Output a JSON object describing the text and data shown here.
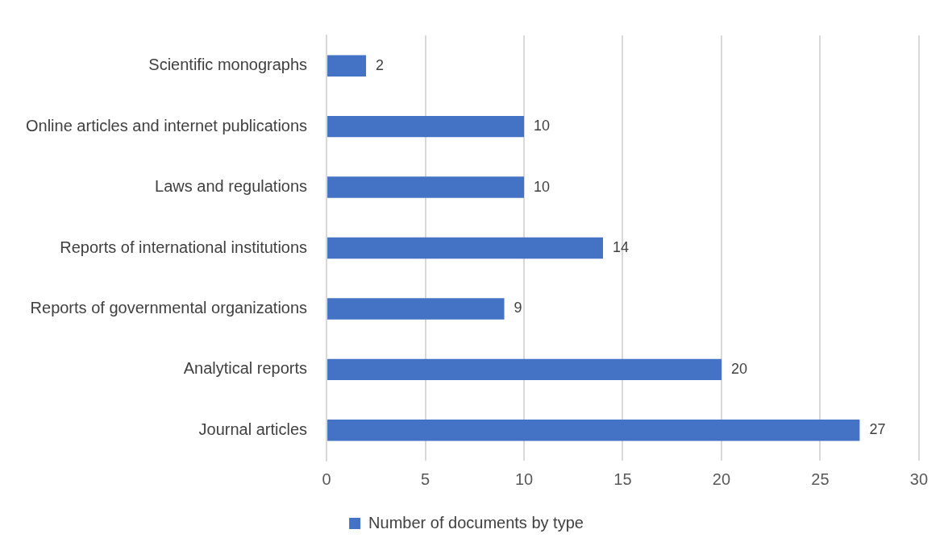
{
  "chart_data": {
    "type": "bar",
    "orientation": "horizontal",
    "categories": [
      "Scientific monographs",
      "Online articles and internet publications",
      "Laws and regulations",
      "Reports of international institutions",
      "Reports of governmental organizations",
      "Analytical reports",
      "Journal articles"
    ],
    "series": [
      {
        "name": "Number of documents by type",
        "color": "#4472c4",
        "values": [
          2,
          10,
          10,
          14,
          9,
          20,
          27
        ]
      }
    ],
    "xlim": [
      0,
      30
    ],
    "xticks": [
      0,
      5,
      10,
      15,
      20,
      25,
      30
    ],
    "grid": "x",
    "legend": "bottom",
    "data_labels": true
  }
}
